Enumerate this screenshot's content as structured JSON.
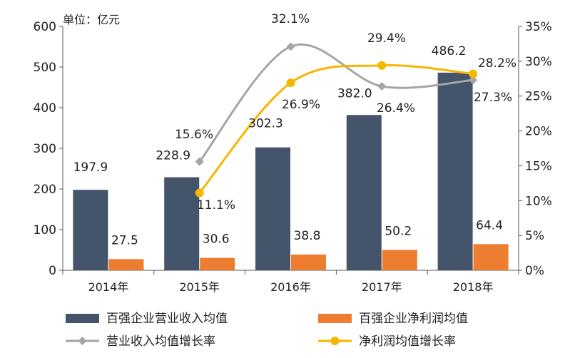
{
  "chart_data": {
    "type": "bar",
    "unit_label": "单位：亿元",
    "categories": [
      "2014年",
      "2015年",
      "2016年",
      "2017年",
      "2018年"
    ],
    "left_axis": {
      "min": 0,
      "max": 600,
      "ticks": [
        "0",
        "100",
        "200",
        "300",
        "400",
        "500",
        "600"
      ]
    },
    "right_axis": {
      "min": 0,
      "max": 35,
      "ticks": [
        "0%",
        "5%",
        "10%",
        "15%",
        "20%",
        "25%",
        "30%",
        "35%"
      ]
    },
    "series": [
      {
        "name": "百强企业营业收入均值",
        "kind": "bar",
        "axis": "left",
        "color": "#44546a",
        "values": [
          197.9,
          228.9,
          302.3,
          382.0,
          486.2
        ],
        "labels": [
          "197.9",
          "228.9",
          "302.3",
          "382.0",
          "486.2"
        ]
      },
      {
        "name": "百强企业净利润均值",
        "kind": "bar",
        "axis": "left",
        "color": "#ed7d31",
        "values": [
          27.5,
          30.6,
          38.8,
          50.2,
          64.4
        ],
        "labels": [
          "27.5",
          "30.6",
          "38.8",
          "50.2",
          "64.4"
        ]
      },
      {
        "name": "营业收入均值增长率",
        "kind": "line",
        "axis": "right",
        "color": "#a5a5a5",
        "values": [
          null,
          15.6,
          32.1,
          26.4,
          27.3
        ],
        "labels": [
          null,
          "15.6%",
          "32.1%",
          "26.4%",
          "27.3%"
        ]
      },
      {
        "name": "净利润均值增长率",
        "kind": "line",
        "axis": "right",
        "color": "#f5b700",
        "values": [
          null,
          11.1,
          26.9,
          29.4,
          28.2
        ],
        "labels": [
          null,
          "11.1%",
          "26.9%",
          "29.4%",
          "28.2%"
        ]
      }
    ],
    "legend_position": "bottom",
    "grid": false
  }
}
